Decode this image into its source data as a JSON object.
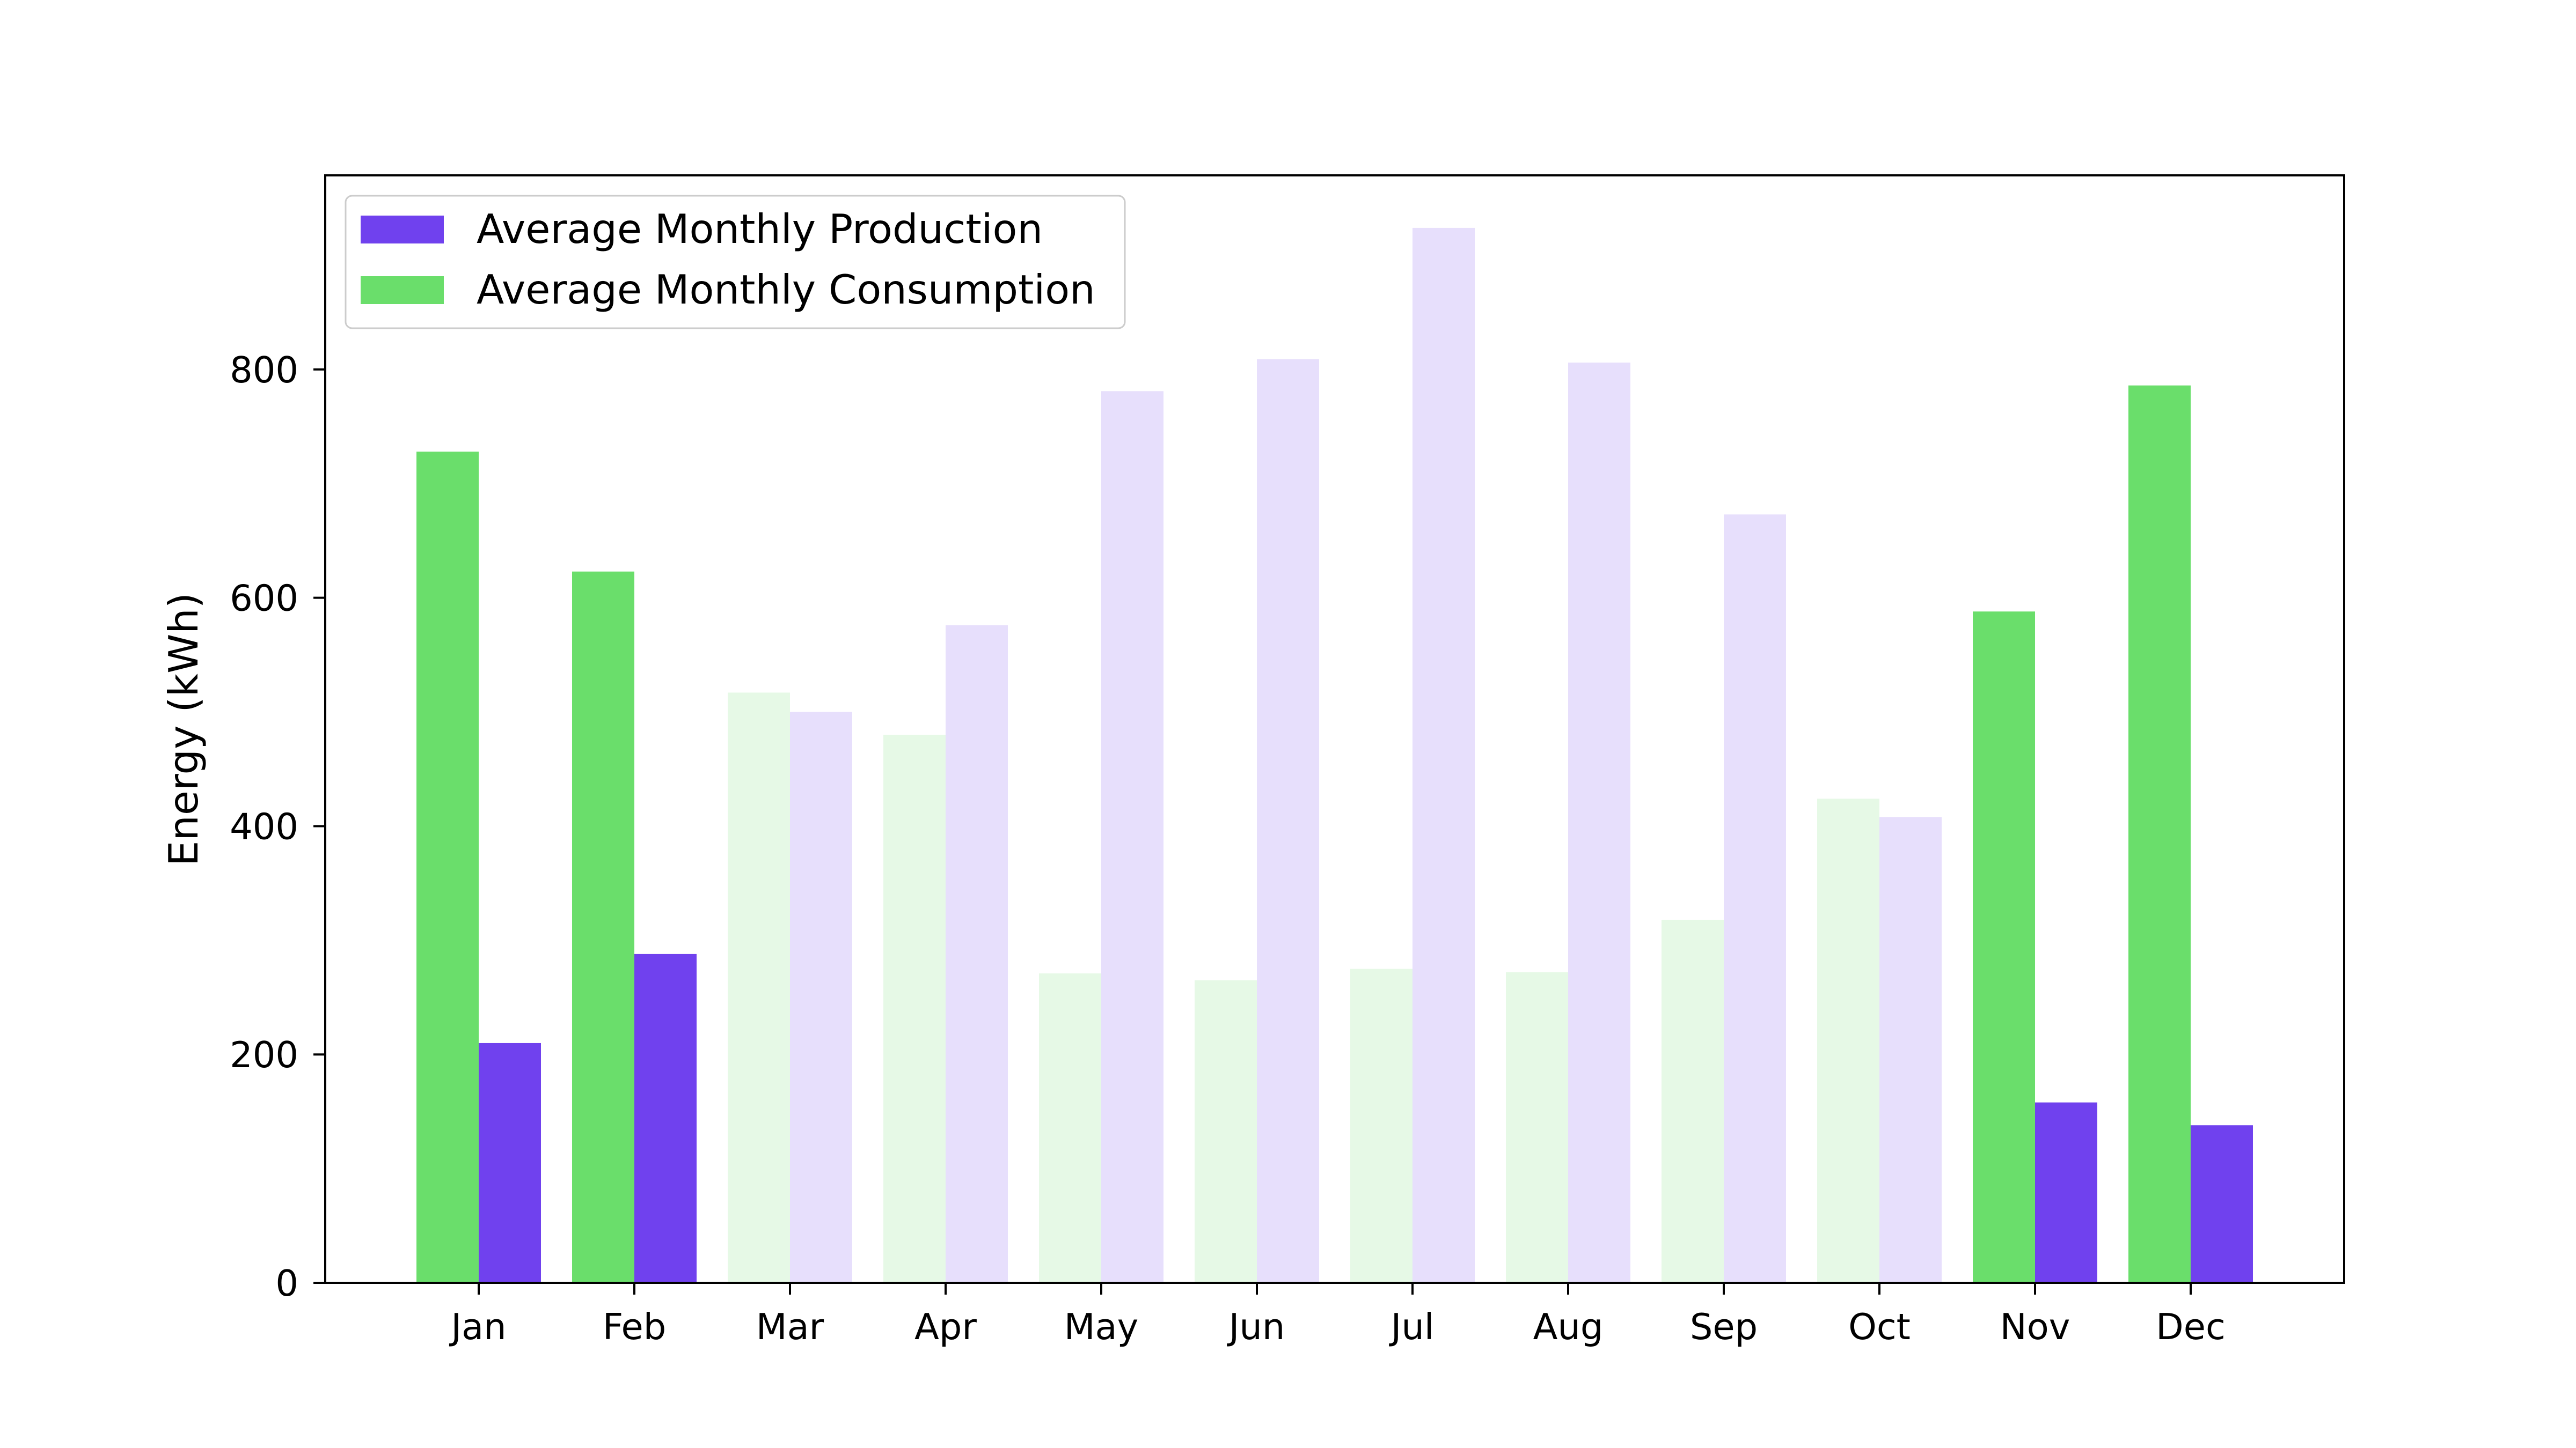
{
  "chart_data": {
    "type": "bar",
    "title": "",
    "xlabel": "",
    "ylabel": "Energy (kWh)",
    "ylim": [
      0,
      970
    ],
    "yticks": [
      0,
      200,
      400,
      600,
      800
    ],
    "categories": [
      "Jan",
      "Feb",
      "Mar",
      "Apr",
      "May",
      "Jun",
      "Jul",
      "Aug",
      "Sep",
      "Oct",
      "Nov",
      "Dec"
    ],
    "series": [
      {
        "name": "Average Monthly Consumption",
        "color": "#6ade6b",
        "values": [
          728,
          623,
          517,
          480,
          271,
          265,
          275,
          272,
          318,
          424,
          588,
          786
        ]
      },
      {
        "name": "Average Monthly Production",
        "color": "#7041ee",
        "values": [
          210,
          288,
          500,
          576,
          781,
          809,
          924,
          806,
          673,
          408,
          158,
          138
        ]
      }
    ],
    "highlighted_months": [
      "Jan",
      "Feb",
      "Nov",
      "Dec"
    ],
    "faded_opacity": 0.17,
    "legend": {
      "placement": "top-left",
      "entries": [
        "Average Monthly Production",
        "Average Monthly Consumption"
      ]
    },
    "grid": false
  }
}
